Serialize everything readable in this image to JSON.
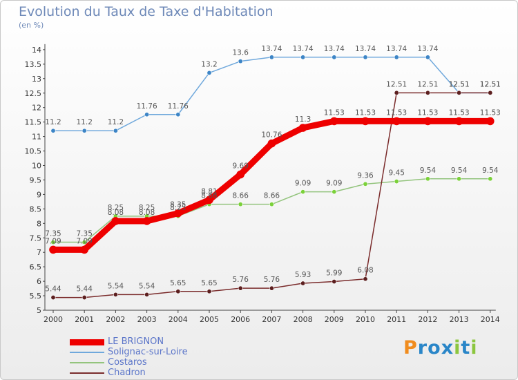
{
  "title": "Evolution du Taux de Taxe d'Habitation",
  "unit": "(en %)",
  "logo": {
    "text": "Proxiti",
    "letters": [
      {
        "ch": "P",
        "color": "#f08c1e"
      },
      {
        "ch": "r",
        "color": "#2a86c8"
      },
      {
        "ch": "o",
        "color": "#2a86c8"
      },
      {
        "ch": "x",
        "color": "#2a86c8"
      },
      {
        "ch": "i",
        "color": "#8cc63f"
      },
      {
        "ch": "t",
        "color": "#2a86c8"
      },
      {
        "ch": "i",
        "color": "#8cc63f"
      }
    ]
  },
  "chart_data": {
    "type": "line",
    "x": [
      "2000",
      "2001",
      "2002",
      "2003",
      "2004",
      "2005",
      "2006",
      "2007",
      "2008",
      "2009",
      "2010",
      "2011",
      "2012",
      "2013",
      "2014"
    ],
    "ylim": [
      5,
      14
    ],
    "yticks": [
      "5",
      "5.5",
      "6",
      "6.5",
      "7",
      "7.5",
      "8",
      "8.5",
      "9",
      "9.5",
      "10",
      "10.5",
      "11",
      "11.5",
      "12",
      "12.5",
      "13",
      "13.5",
      "14"
    ],
    "grid": false,
    "legend_position": "bottom-left",
    "series": [
      {
        "name": "LE BRIGNON",
        "color": "#ee0000",
        "point_color": "#ee0000",
        "width": 9,
        "values": [
          7.09,
          7.09,
          8.08,
          8.08,
          8.35,
          8.81,
          9.69,
          10.76,
          11.3,
          11.53,
          11.53,
          11.53,
          11.53,
          11.53,
          11.53
        ],
        "labels": [
          "7.09",
          "7.09",
          "8.08",
          "8.08",
          "8.35",
          "8.81",
          "9.69",
          "10.76",
          "11.3",
          "11.53",
          "11.53",
          "11.53",
          "11.53",
          "11.53",
          "11.53"
        ]
      },
      {
        "name": "Solignac-sur-Loire",
        "color": "#6fa8dc",
        "point_color": "#3d85c6",
        "width": 1.5,
        "values": [
          11.2,
          11.2,
          11.2,
          11.76,
          11.76,
          13.2,
          13.6,
          13.74,
          13.74,
          13.74,
          13.74,
          13.74,
          13.74,
          12.51,
          12.51
        ],
        "labels": [
          "11.2",
          "11.2",
          "11.2",
          "11.76",
          "11.76",
          "13.2",
          "13.6",
          "13.74",
          "13.74",
          "13.74",
          "13.74",
          "13.74",
          "13.74",
          "12.51",
          "12.51"
        ]
      },
      {
        "name": "Costaros",
        "color": "#93c47d",
        "point_color": "#7bd13a",
        "width": 1.5,
        "values": [
          7.35,
          7.35,
          8.25,
          8.25,
          8.25,
          8.66,
          8.66,
          8.66,
          9.09,
          9.09,
          9.36,
          9.45,
          9.54,
          9.54,
          9.54
        ],
        "labels": [
          "7.35",
          "7.35",
          "8.25",
          "8.25",
          "8.25",
          "8.66",
          "8.66",
          "8.66",
          "9.09",
          "9.09",
          "9.36",
          "9.45",
          "9.54",
          "9.54",
          "9.54"
        ]
      },
      {
        "name": "Chadron",
        "color": "#7a2b2b",
        "point_color": "#5c1f1f",
        "width": 1.5,
        "values": [
          5.44,
          5.44,
          5.54,
          5.54,
          5.65,
          5.65,
          5.76,
          5.76,
          5.93,
          5.99,
          6.08,
          12.51,
          12.51,
          12.51,
          12.51
        ],
        "labels": [
          "5.44",
          "5.44",
          "5.54",
          "5.54",
          "5.65",
          "5.65",
          "5.76",
          "5.76",
          "5.93",
          "5.99",
          "6.08",
          "12.51",
          "12.51",
          "12.51",
          "12.51"
        ]
      }
    ]
  }
}
